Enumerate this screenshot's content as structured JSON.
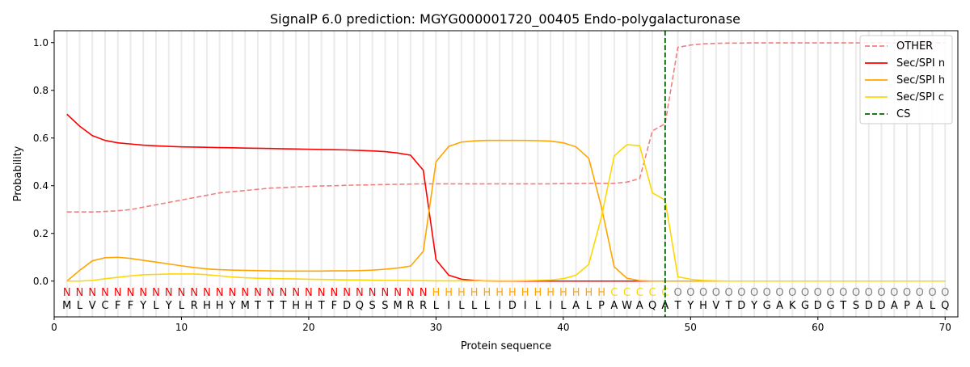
{
  "chart_data": {
    "type": "line",
    "title": "SignalP 6.0 prediction: MGYG000001720_00405 Endo-polygalacturonase",
    "xlabel": "Protein sequence",
    "ylabel": "Probability",
    "xlim": [
      0,
      71
    ],
    "ylim": [
      -0.15,
      1.05
    ],
    "xticks": [
      0,
      10,
      20,
      30,
      40,
      50,
      60,
      70
    ],
    "yticks": [
      0.0,
      0.2,
      0.4,
      0.6,
      0.8,
      1.0
    ],
    "ytick_labels": [
      "0.0",
      "0.2",
      "0.4",
      "0.6",
      "0.8",
      "1.0"
    ],
    "legend_position": "top-right",
    "x": [
      1,
      2,
      3,
      4,
      5,
      6,
      7,
      8,
      9,
      10,
      11,
      12,
      13,
      14,
      15,
      16,
      17,
      18,
      19,
      20,
      21,
      22,
      23,
      24,
      25,
      26,
      27,
      28,
      29,
      30,
      31,
      32,
      33,
      34,
      35,
      36,
      37,
      38,
      39,
      40,
      41,
      42,
      43,
      44,
      45,
      46,
      47,
      48,
      49,
      50,
      51,
      52,
      53,
      54,
      55,
      56,
      57,
      58,
      59,
      60,
      61,
      62,
      63,
      64,
      65,
      66,
      67,
      68,
      69,
      70
    ],
    "sequence": [
      "M",
      "L",
      "V",
      "C",
      "F",
      "F",
      "Y",
      "L",
      "Y",
      "L",
      "R",
      "H",
      "H",
      "Y",
      "M",
      "T",
      "T",
      "T",
      "H",
      "H",
      "T",
      "F",
      "D",
      "Q",
      "S",
      "S",
      "M",
      "R",
      "R",
      "L",
      "I",
      "L",
      "L",
      "L",
      "I",
      "D",
      "I",
      "L",
      "I",
      "L",
      "A",
      "L",
      "P",
      "A",
      "W",
      "A",
      "Q",
      "A",
      "T",
      "Y",
      "H",
      "V",
      "T",
      "D",
      "Y",
      "G",
      "A",
      "K",
      "G",
      "D",
      "G",
      "T",
      "S",
      "D",
      "D",
      "A",
      "P",
      "A",
      "L",
      "Q"
    ],
    "region_labels": [
      "N",
      "N",
      "N",
      "N",
      "N",
      "N",
      "N",
      "N",
      "N",
      "N",
      "N",
      "N",
      "N",
      "N",
      "N",
      "N",
      "N",
      "N",
      "N",
      "N",
      "N",
      "N",
      "N",
      "N",
      "N",
      "N",
      "N",
      "N",
      "N",
      "H",
      "H",
      "H",
      "H",
      "H",
      "H",
      "H",
      "H",
      "H",
      "H",
      "H",
      "H",
      "H",
      "H",
      "C",
      "C",
      "C",
      "C",
      "C",
      "O",
      "O",
      "O",
      "O",
      "O",
      "O",
      "O",
      "O",
      "O",
      "O",
      "O",
      "O",
      "O",
      "O",
      "O",
      "O",
      "O",
      "O",
      "O",
      "O",
      "O",
      "O"
    ],
    "region_colors": {
      "N": "#ff0000",
      "H": "#ffa500",
      "C": "#ffd700",
      "O": "#808080"
    },
    "series": [
      {
        "name": "OTHER",
        "color": "#f08080",
        "dash": true,
        "values": [
          0.29,
          0.29,
          0.29,
          0.292,
          0.295,
          0.3,
          0.31,
          0.32,
          0.33,
          0.34,
          0.35,
          0.36,
          0.37,
          0.375,
          0.38,
          0.385,
          0.39,
          0.392,
          0.395,
          0.397,
          0.399,
          0.4,
          0.402,
          0.403,
          0.404,
          0.405,
          0.406,
          0.407,
          0.408,
          0.408,
          0.408,
          0.408,
          0.408,
          0.408,
          0.408,
          0.408,
          0.408,
          0.408,
          0.408,
          0.409,
          0.409,
          0.41,
          0.41,
          0.41,
          0.415,
          0.43,
          0.63,
          0.66,
          0.98,
          0.99,
          0.995,
          0.997,
          0.998,
          0.998,
          0.999,
          0.999,
          0.999,
          0.999,
          0.999,
          0.999,
          0.999,
          0.999,
          0.999,
          0.999,
          0.999,
          0.999,
          0.999,
          0.999,
          0.999,
          0.999
        ]
      },
      {
        "name": "Sec/SPI n",
        "color": "#ff0000",
        "dash": false,
        "values": [
          0.7,
          0.65,
          0.61,
          0.59,
          0.58,
          0.575,
          0.57,
          0.567,
          0.565,
          0.563,
          0.562,
          0.561,
          0.56,
          0.559,
          0.558,
          0.557,
          0.556,
          0.555,
          0.554,
          0.553,
          0.552,
          0.551,
          0.55,
          0.548,
          0.546,
          0.543,
          0.537,
          0.528,
          0.465,
          0.09,
          0.025,
          0.008,
          0.003,
          0.001,
          0,
          0,
          0,
          0,
          0,
          0,
          0,
          0,
          0,
          0,
          0,
          0,
          0,
          0,
          0,
          0,
          0,
          0,
          0,
          0,
          0,
          0,
          0,
          0,
          0,
          0,
          0,
          0,
          0,
          0,
          0,
          0,
          0,
          0,
          0,
          0
        ]
      },
      {
        "name": "Sec/SPI h",
        "color": "#ffa500",
        "dash": false,
        "values": [
          0.0,
          0.045,
          0.085,
          0.098,
          0.1,
          0.095,
          0.087,
          0.08,
          0.072,
          0.064,
          0.057,
          0.051,
          0.048,
          0.046,
          0.045,
          0.044,
          0.043,
          0.042,
          0.042,
          0.042,
          0.042,
          0.043,
          0.043,
          0.044,
          0.046,
          0.05,
          0.055,
          0.063,
          0.125,
          0.5,
          0.565,
          0.583,
          0.588,
          0.59,
          0.59,
          0.59,
          0.59,
          0.589,
          0.587,
          0.58,
          0.563,
          0.515,
          0.31,
          0.06,
          0.012,
          0.002,
          0,
          0,
          0,
          0,
          0,
          0,
          0,
          0,
          0,
          0,
          0,
          0,
          0,
          0,
          0,
          0,
          0,
          0,
          0,
          0,
          0,
          0,
          0,
          0
        ]
      },
      {
        "name": "Sec/SPI c",
        "color": "#ffd700",
        "dash": false,
        "values": [
          0.0,
          0.0,
          0.003,
          0.01,
          0.016,
          0.022,
          0.027,
          0.028,
          0.03,
          0.03,
          0.03,
          0.027,
          0.022,
          0.017,
          0.014,
          0.012,
          0.011,
          0.01,
          0.009,
          0.008,
          0.007,
          0.006,
          0.005,
          0.005,
          0.004,
          0.003,
          0.003,
          0.002,
          0.002,
          0.001,
          0.001,
          0.001,
          0.001,
          0.001,
          0.001,
          0.001,
          0.002,
          0.003,
          0.005,
          0.01,
          0.025,
          0.07,
          0.27,
          0.525,
          0.572,
          0.568,
          0.37,
          0.34,
          0.018,
          0.008,
          0.003,
          0.001,
          0,
          0,
          0,
          0,
          0,
          0,
          0,
          0,
          0,
          0,
          0,
          0,
          0,
          0,
          0,
          0,
          0,
          0
        ]
      }
    ],
    "cs": {
      "name": "CS",
      "x": 48,
      "color": "#006400"
    }
  }
}
